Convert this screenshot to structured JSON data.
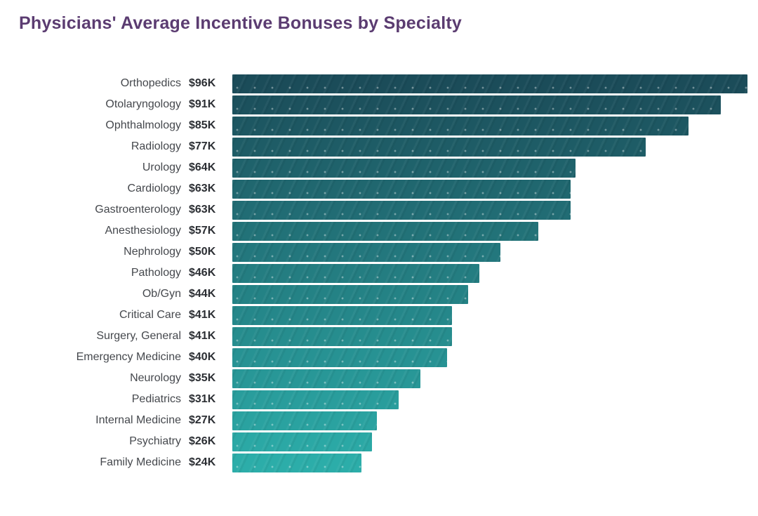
{
  "chart_data": {
    "type": "bar",
    "orientation": "horizontal",
    "title": "Physicians' Average Incentive Bonuses by Specialty",
    "categories": [
      "Orthopedics",
      "Otolaryngology",
      "Ophthalmology",
      "Radiology",
      "Urology",
      "Cardiology",
      "Gastroenterology",
      "Anesthesiology",
      "Nephrology",
      "Pathology",
      "Ob/Gyn",
      "Critical Care",
      "Surgery, General",
      "Emergency Medicine",
      "Neurology",
      "Pediatrics",
      "Internal Medicine",
      "Psychiatry",
      "Family Medicine"
    ],
    "values": [
      96,
      91,
      85,
      77,
      64,
      63,
      63,
      57,
      50,
      46,
      44,
      41,
      41,
      40,
      35,
      31,
      27,
      26,
      24
    ],
    "value_labels": [
      "$96K",
      "$91K",
      "$85K",
      "$77K",
      "$64K",
      "$63K",
      "$63K",
      "$57K",
      "$50K",
      "$46K",
      "$44K",
      "$41K",
      "$41K",
      "$40K",
      "$35K",
      "$31K",
      "$27K",
      "$26K",
      "$24K"
    ],
    "ylabel": "",
    "xlabel": "",
    "xlim": [
      0,
      96
    ],
    "grid": false,
    "legend": null,
    "value_label_position": "left-of-bar",
    "colors": {
      "bar_gradient_top": "#1b4c59",
      "bar_gradient_bottom": "#2cada9",
      "title": "#5b3c71",
      "category_label": "#45484d",
      "value_label": "#2b2e33",
      "background": "#ffffff"
    }
  }
}
